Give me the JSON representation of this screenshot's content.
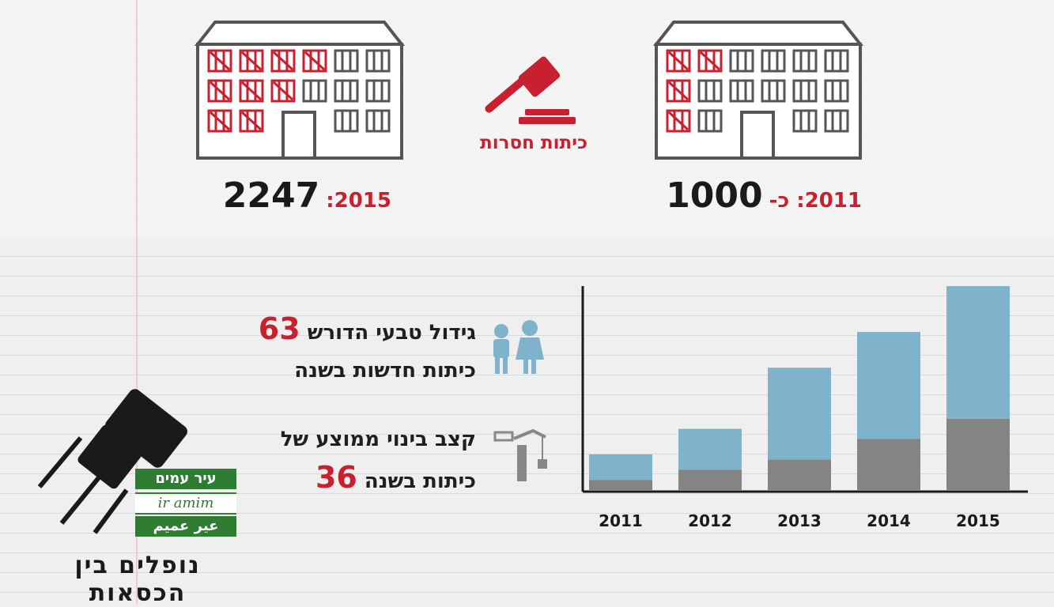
{
  "header": {
    "left_building": {
      "year_label": "2015:",
      "value": "2247"
    },
    "right_building": {
      "year_label": "2011: כ-",
      "value": "1000"
    },
    "gavel_caption": "כיתות חסרות"
  },
  "stats": {
    "growth": {
      "number": "63",
      "line1": "גידול טבעי הדורש",
      "line2": "כיתות חדשות בשנה",
      "icon": "children-icon"
    },
    "construction": {
      "number": "36",
      "line1": "קצב בינוי ממוצע של",
      "line2": "כיתות בשנה",
      "icon": "crane-icon"
    }
  },
  "logo": {
    "hebrew": "עיר עמים",
    "latin": "ir amim",
    "arabic": "عير عميم",
    "tagline": "נופלים בין הכסאות"
  },
  "colors": {
    "red": "#c8202e",
    "blue": "#7fb3cb",
    "gray": "#848484",
    "green": "#2e7d32",
    "outline": "#555555"
  },
  "chart_data": {
    "type": "bar",
    "stacked": true,
    "categories": [
      "2011",
      "2012",
      "2013",
      "2014",
      "2015"
    ],
    "series": [
      {
        "color": "#848484",
        "values": [
          100,
          200,
          300,
          500,
          700
        ]
      },
      {
        "color": "#7fb3cb",
        "values": [
          250,
          400,
          900,
          1050,
          1300
        ]
      }
    ],
    "ylim": [
      0,
      2000
    ],
    "grid": false,
    "legend": "none"
  }
}
